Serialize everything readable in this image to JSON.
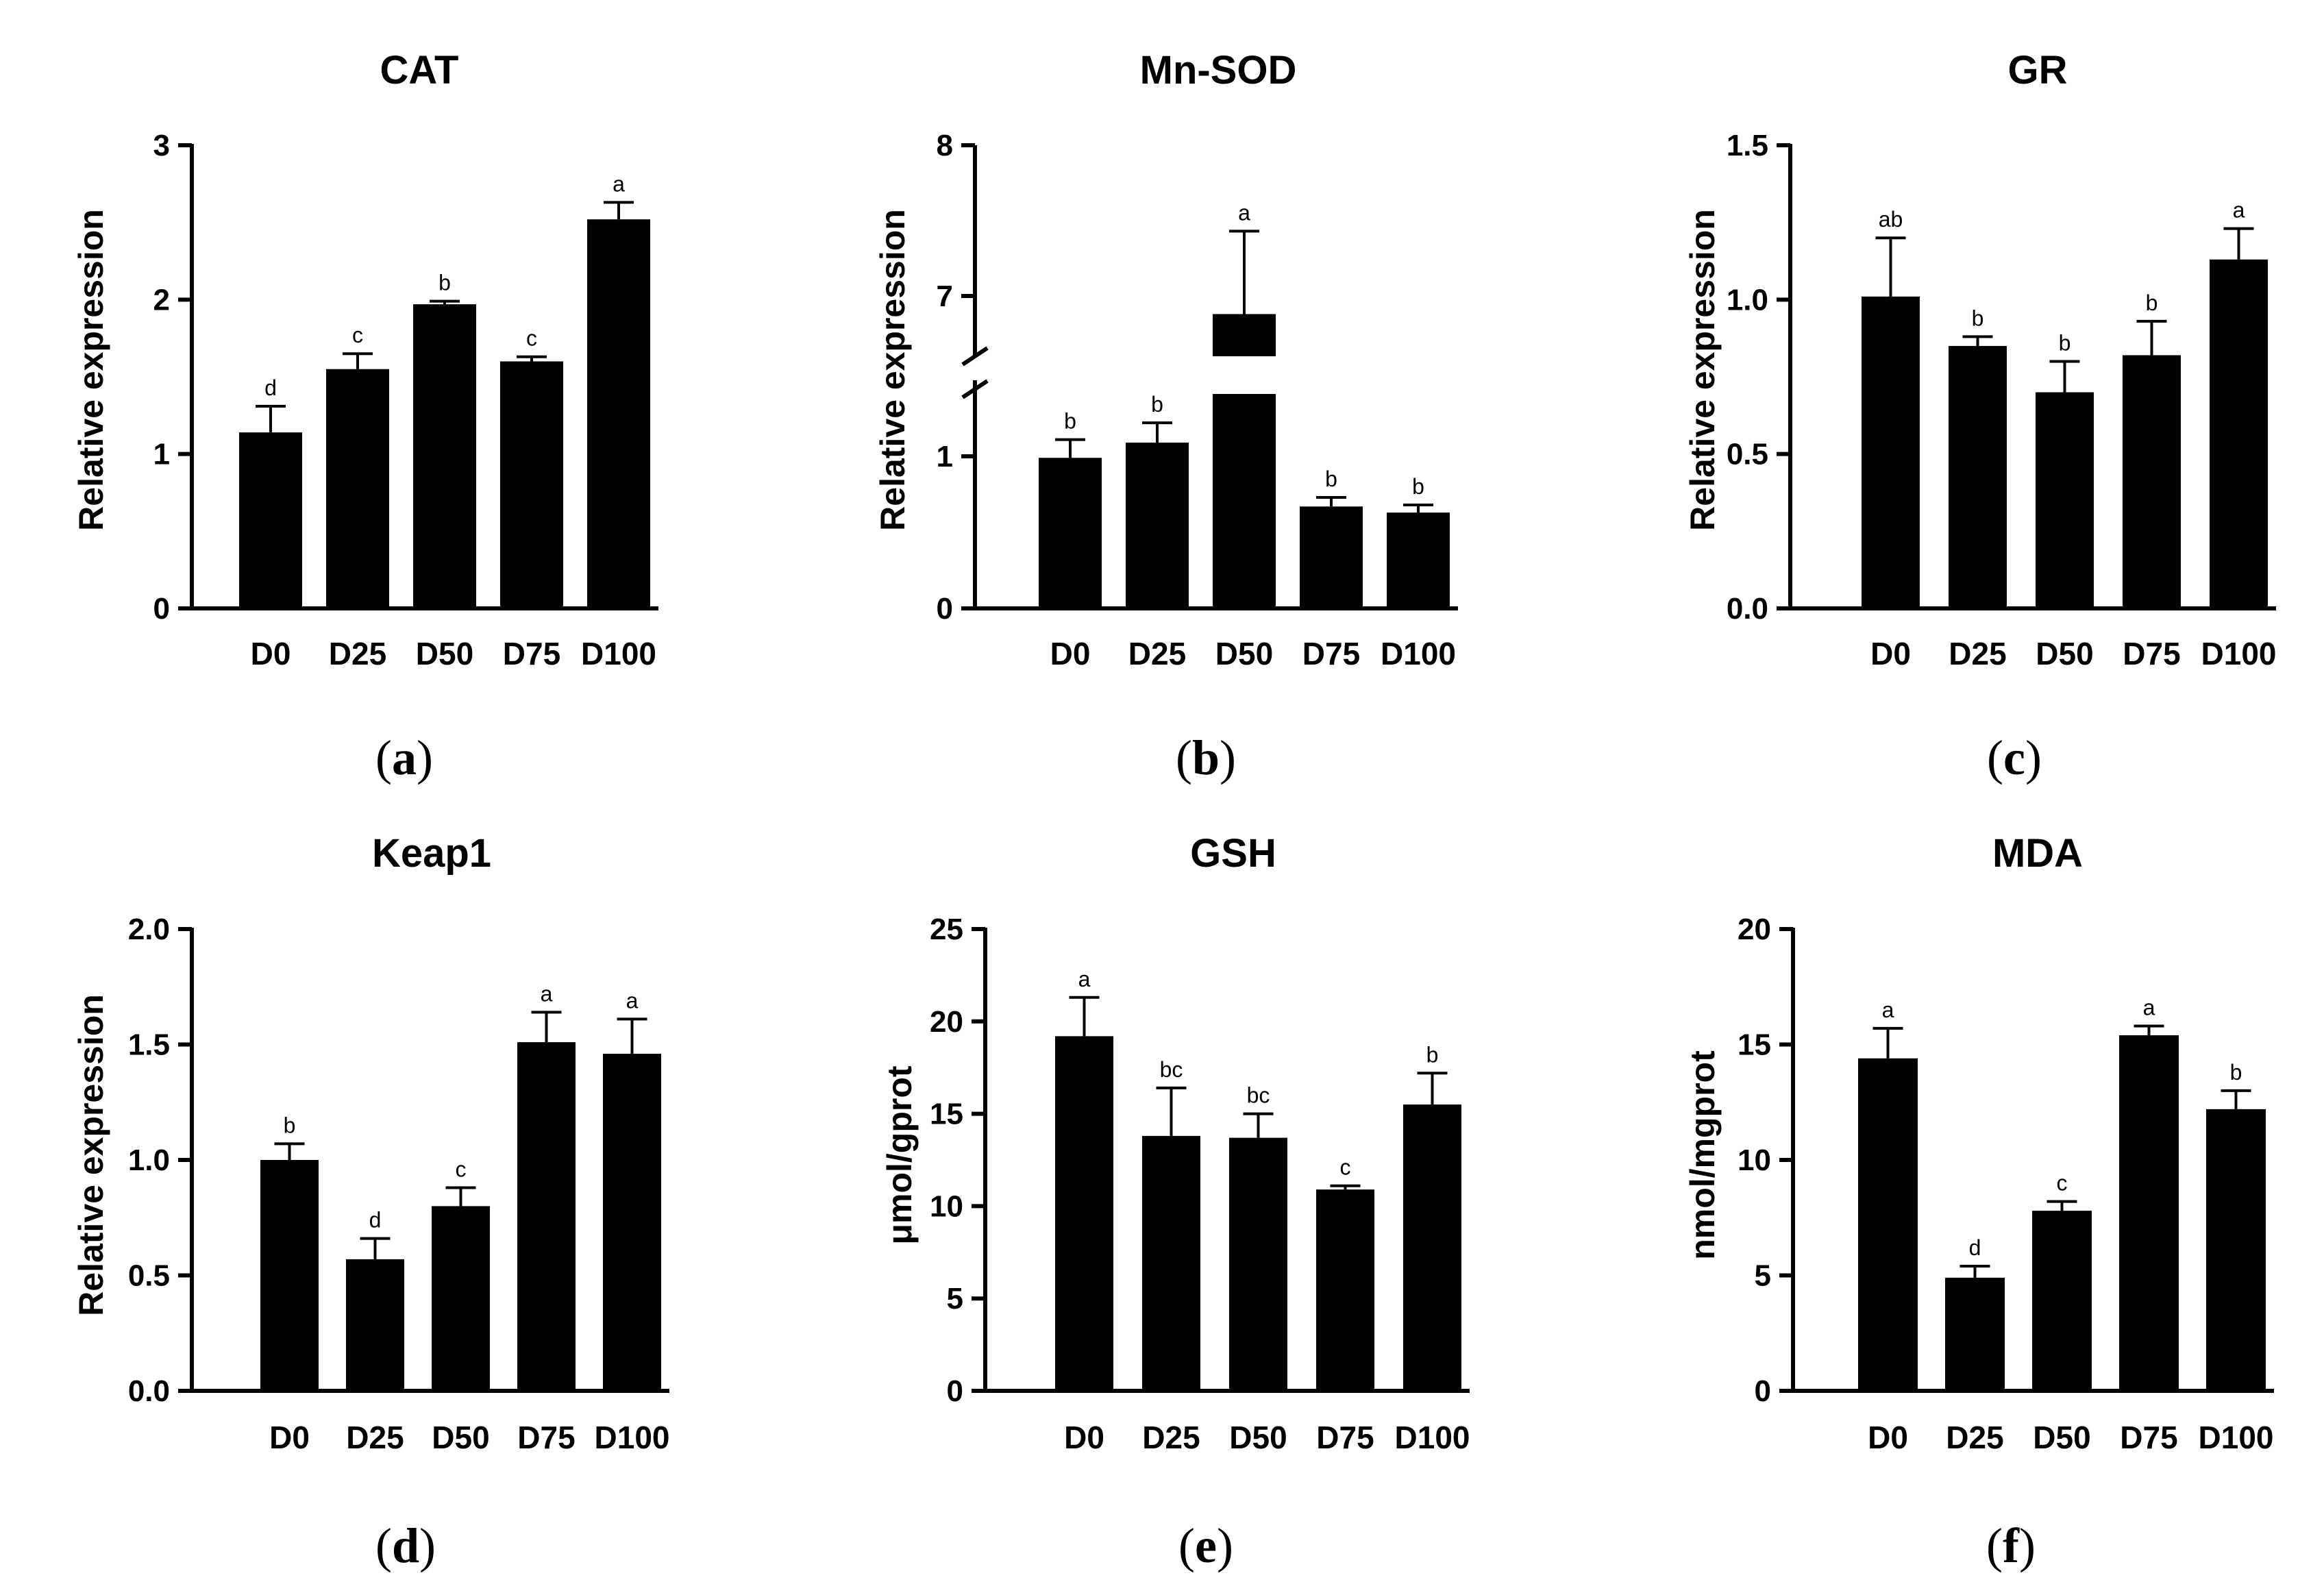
{
  "figure_title": "",
  "chart_data": [
    {
      "panel": "a",
      "title": "CAT",
      "type": "bar",
      "ylabel": "Relative expression",
      "categories": [
        "D0",
        "D25",
        "D50",
        "D75",
        "D100"
      ],
      "values": [
        1.14,
        1.55,
        1.97,
        1.6,
        2.52
      ],
      "errors": [
        0.17,
        0.1,
        0.02,
        0.03,
        0.11
      ],
      "letters": [
        "d",
        "c",
        "b",
        "c",
        "a"
      ],
      "ylim": [
        0,
        3
      ],
      "yticks": [
        0,
        1,
        2,
        3
      ],
      "ytick_labels": [
        "0",
        "1",
        "2",
        "3"
      ]
    },
    {
      "panel": "b",
      "title": "Mn-SOD",
      "type": "bar",
      "ylabel": "Relative expression",
      "categories": [
        "D0",
        "D25",
        "D50",
        "D75",
        "D100"
      ],
      "values": [
        0.99,
        1.09,
        6.88,
        0.67,
        0.63
      ],
      "errors": [
        0.12,
        0.13,
        0.55,
        0.06,
        0.05
      ],
      "letters": [
        "b",
        "b",
        "a",
        "b",
        "b"
      ],
      "ylim": [
        0,
        8
      ],
      "axis_break": {
        "lower_max": 1.5,
        "upper_min": 6.6
      },
      "yticks": [
        0,
        1,
        7,
        8
      ],
      "ytick_labels": [
        "0",
        "1",
        "7",
        "8"
      ]
    },
    {
      "panel": "c",
      "title": "GR",
      "type": "bar",
      "ylabel": "Relative expression",
      "categories": [
        "D0",
        "D25",
        "D50",
        "D75",
        "D100"
      ],
      "values": [
        1.01,
        0.85,
        0.7,
        0.82,
        1.13
      ],
      "errors": [
        0.19,
        0.03,
        0.1,
        0.11,
        0.1
      ],
      "letters": [
        "ab",
        "b",
        "b",
        "b",
        "a"
      ],
      "ylim": [
        0,
        1.5
      ],
      "yticks": [
        0,
        0.5,
        1.0,
        1.5
      ],
      "ytick_labels": [
        "0.0",
        "0.5",
        "1.0",
        "1.5"
      ]
    },
    {
      "panel": "d",
      "title": "Keap1",
      "type": "bar",
      "ylabel": "Relative expression",
      "categories": [
        "D0",
        "D25",
        "D50",
        "D75",
        "D100"
      ],
      "values": [
        1.0,
        0.57,
        0.8,
        1.51,
        1.46
      ],
      "errors": [
        0.07,
        0.09,
        0.08,
        0.13,
        0.15
      ],
      "letters": [
        "b",
        "d",
        "c",
        "a",
        "a"
      ],
      "ylim": [
        0,
        2.0
      ],
      "yticks": [
        0,
        0.5,
        1.0,
        1.5,
        2.0
      ],
      "ytick_labels": [
        "0.0",
        "0.5",
        "1.0",
        "1.5",
        "2.0"
      ]
    },
    {
      "panel": "e",
      "title": "GSH",
      "type": "bar",
      "ylabel": "μmol/gprot",
      "categories": [
        "D0",
        "D25",
        "D50",
        "D75",
        "D100"
      ],
      "values": [
        19.2,
        13.8,
        13.7,
        10.9,
        15.5
      ],
      "errors": [
        2.1,
        2.6,
        1.3,
        0.2,
        1.7
      ],
      "letters": [
        "a",
        "bc",
        "bc",
        "c",
        "b"
      ],
      "ylim": [
        0,
        25
      ],
      "yticks": [
        0,
        5,
        10,
        15,
        20,
        25
      ],
      "ytick_labels": [
        "0",
        "5",
        "10",
        "15",
        "20",
        "25"
      ]
    },
    {
      "panel": "f",
      "title": "MDA",
      "type": "bar",
      "ylabel": "nmol/mgprot",
      "categories": [
        "D0",
        "D25",
        "D50",
        "D75",
        "D100"
      ],
      "values": [
        14.4,
        4.9,
        7.8,
        15.4,
        12.2
      ],
      "errors": [
        1.3,
        0.5,
        0.4,
        0.4,
        0.8
      ],
      "letters": [
        "a",
        "d",
        "c",
        "a",
        "b"
      ],
      "ylim": [
        0,
        20
      ],
      "yticks": [
        0,
        5,
        10,
        15,
        20
      ],
      "ytick_labels": [
        "0",
        "5",
        "10",
        "15",
        "20"
      ]
    }
  ],
  "panel_labels": [
    "(a)",
    "(b)",
    "(c)",
    "(d)",
    "(e)",
    "(f)"
  ],
  "colors": {
    "bar": "#000000",
    "axis": "#000000",
    "background": "#ffffff"
  }
}
